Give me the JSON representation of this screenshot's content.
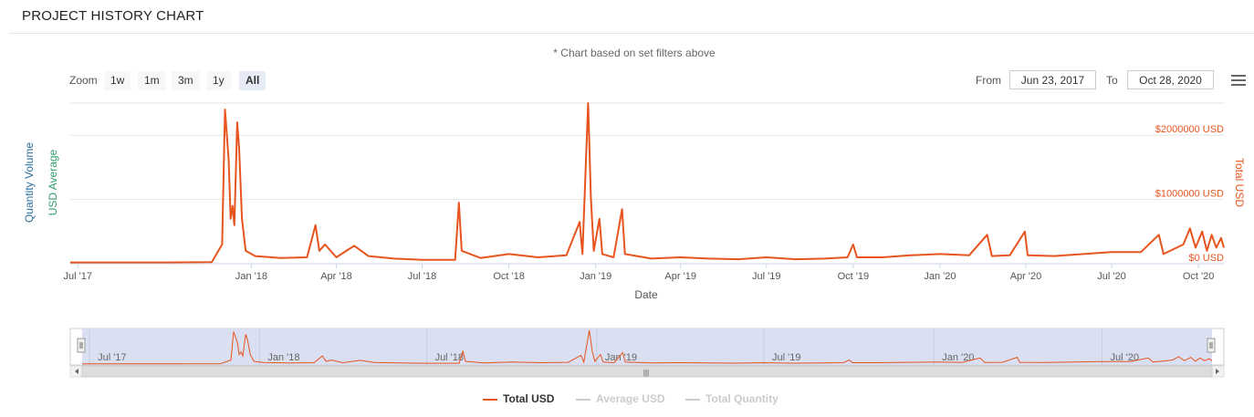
{
  "header": {
    "title": "PROJECT HISTORY CHART"
  },
  "subtitle": "* Chart based on set filters above",
  "range_selector": {
    "zoom_label": "Zoom",
    "buttons": [
      "1w",
      "1m",
      "3m",
      "1y",
      "All"
    ],
    "selected": "All",
    "from_label": "From",
    "from_value": "Jun 23, 2017",
    "to_label": "To",
    "to_value": "Oct 28, 2020"
  },
  "menu": {
    "icon": "hamburger-menu-icon"
  },
  "chart_data": {
    "type": "line",
    "xlabel": "Date",
    "left_axis_titles": [
      "Quantity Volume",
      "USD Average"
    ],
    "right_axis_title": "Total USD",
    "x_range": [
      "2017-06-23",
      "2020-10-28"
    ],
    "x_ticks": [
      "Jul '17",
      "Jan '18",
      "Apr '18",
      "Jul '18",
      "Oct '18",
      "Jan '19",
      "Apr '19",
      "Jul '19",
      "Oct '19",
      "Jan '20",
      "Apr '20",
      "Jul '20",
      "Oct '20"
    ],
    "y_ticks": [
      "$0 USD",
      "$1000000 USD",
      "$2000000 USD"
    ],
    "y_tick_values": [
      0,
      1000000,
      2000000
    ],
    "ylim": [
      0,
      2500000
    ],
    "grid": true,
    "series": [
      {
        "name": "Total USD",
        "color": "#e8541e",
        "visible": true,
        "points": [
          [
            "2017-06-23",
            20000
          ],
          [
            "2017-08-01",
            20000
          ],
          [
            "2017-10-01",
            20000
          ],
          [
            "2017-11-20",
            25000
          ],
          [
            "2017-12-01",
            300000
          ],
          [
            "2017-12-04",
            2400000
          ],
          [
            "2017-12-06",
            2000000
          ],
          [
            "2017-12-08",
            1600000
          ],
          [
            "2017-12-10",
            700000
          ],
          [
            "2017-12-12",
            900000
          ],
          [
            "2017-12-14",
            600000
          ],
          [
            "2017-12-17",
            2200000
          ],
          [
            "2017-12-19",
            1800000
          ],
          [
            "2017-12-22",
            700000
          ],
          [
            "2017-12-26",
            200000
          ],
          [
            "2018-01-05",
            120000
          ],
          [
            "2018-02-01",
            90000
          ],
          [
            "2018-03-01",
            100000
          ],
          [
            "2018-03-10",
            600000
          ],
          [
            "2018-03-14",
            200000
          ],
          [
            "2018-03-20",
            300000
          ],
          [
            "2018-04-01",
            100000
          ],
          [
            "2018-04-20",
            280000
          ],
          [
            "2018-05-05",
            120000
          ],
          [
            "2018-06-01",
            80000
          ],
          [
            "2018-07-01",
            60000
          ],
          [
            "2018-08-05",
            60000
          ],
          [
            "2018-08-09",
            950000
          ],
          [
            "2018-08-12",
            200000
          ],
          [
            "2018-09-01",
            90000
          ],
          [
            "2018-10-01",
            150000
          ],
          [
            "2018-11-01",
            100000
          ],
          [
            "2018-12-01",
            130000
          ],
          [
            "2018-12-15",
            650000
          ],
          [
            "2018-12-18",
            150000
          ],
          [
            "2018-12-24",
            2500000
          ],
          [
            "2018-12-27",
            1000000
          ],
          [
            "2018-12-30",
            200000
          ],
          [
            "2019-01-05",
            700000
          ],
          [
            "2019-01-08",
            150000
          ],
          [
            "2019-01-20",
            100000
          ],
          [
            "2019-01-29",
            850000
          ],
          [
            "2019-02-01",
            150000
          ],
          [
            "2019-03-01",
            80000
          ],
          [
            "2019-04-01",
            100000
          ],
          [
            "2019-05-01",
            80000
          ],
          [
            "2019-06-01",
            70000
          ],
          [
            "2019-07-01",
            100000
          ],
          [
            "2019-08-01",
            70000
          ],
          [
            "2019-09-01",
            80000
          ],
          [
            "2019-09-25",
            100000
          ],
          [
            "2019-10-01",
            300000
          ],
          [
            "2019-10-05",
            100000
          ],
          [
            "2019-11-01",
            100000
          ],
          [
            "2019-12-01",
            130000
          ],
          [
            "2020-01-01",
            150000
          ],
          [
            "2020-02-01",
            130000
          ],
          [
            "2020-02-20",
            450000
          ],
          [
            "2020-02-25",
            120000
          ],
          [
            "2020-03-15",
            130000
          ],
          [
            "2020-03-31",
            500000
          ],
          [
            "2020-04-03",
            130000
          ],
          [
            "2020-05-01",
            120000
          ],
          [
            "2020-06-01",
            150000
          ],
          [
            "2020-07-01",
            180000
          ],
          [
            "2020-08-01",
            180000
          ],
          [
            "2020-08-20",
            450000
          ],
          [
            "2020-08-25",
            150000
          ],
          [
            "2020-09-15",
            300000
          ],
          [
            "2020-09-22",
            550000
          ],
          [
            "2020-09-28",
            250000
          ],
          [
            "2020-10-05",
            500000
          ],
          [
            "2020-10-10",
            200000
          ],
          [
            "2020-10-15",
            450000
          ],
          [
            "2020-10-20",
            250000
          ],
          [
            "2020-10-25",
            400000
          ],
          [
            "2020-10-28",
            250000
          ]
        ]
      },
      {
        "name": "Average USD",
        "color": "#cccccc",
        "visible": false,
        "points": []
      },
      {
        "name": "Total Quantity",
        "color": "#cccccc",
        "visible": false,
        "points": []
      }
    ]
  },
  "navigator": {
    "x_ticks": [
      "Jul '17",
      "Jan '18",
      "Jul '18",
      "Jan '19",
      "Jul '19",
      "Jan '20",
      "Jul '20"
    ],
    "scrollbar_grip": "|||"
  },
  "legend": [
    {
      "label": "Total USD",
      "color": "#e8541e",
      "active": true
    },
    {
      "label": "Average USD",
      "color": "#cccccc",
      "active": false
    },
    {
      "label": "Total Quantity",
      "color": "#cccccc",
      "active": false
    }
  ]
}
